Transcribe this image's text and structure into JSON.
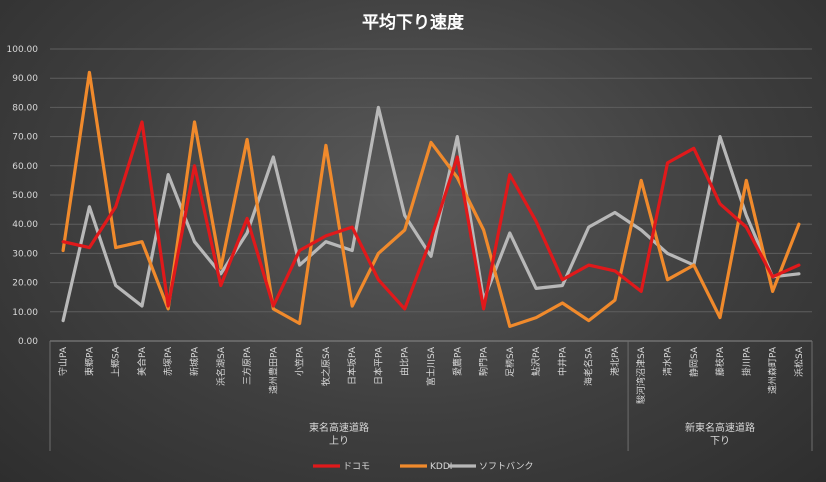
{
  "chart_data": {
    "type": "line",
    "title": "平均下り速度",
    "ylim": [
      0,
      100
    ],
    "yticks": [
      "0.00",
      "10.00",
      "20.00",
      "30.00",
      "40.00",
      "50.00",
      "60.00",
      "70.00",
      "80.00",
      "90.00",
      "100.00"
    ],
    "categories": [
      "守山PA",
      "東郷PA",
      "上郷SA",
      "美合PA",
      "赤塚PA",
      "新城PA",
      "浜名湖SA",
      "三方原PA",
      "遠州豊田PA",
      "小笠PA",
      "牧之原SA",
      "日本坂PA",
      "日本平PA",
      "由比PA",
      "富士川SA",
      "愛鷹PA",
      "駒門PA",
      "足柄SA",
      "鮎沢PA",
      "中井PA",
      "海老名SA",
      "港北PA",
      "駿河湾沼津SA",
      "清水PA",
      "静岡SA",
      "藤枝PA",
      "掛川PA",
      "遠州森町PA",
      "浜松SA"
    ],
    "groups": [
      {
        "label_line1": "東名高速道路",
        "label_line2": "上り",
        "count": 22
      },
      {
        "label_line1": "新東名高速道路",
        "label_line2": "下り",
        "count": 7
      }
    ],
    "series": [
      {
        "name": "ドコモ",
        "color": "#e0191b",
        "values": [
          34,
          32,
          46,
          75,
          12,
          60,
          19,
          42,
          12,
          31,
          36,
          39,
          21,
          11,
          35,
          63,
          11,
          57,
          41,
          21,
          26,
          24,
          17,
          61,
          66,
          47,
          39,
          22,
          26
        ]
      },
      {
        "name": "KDDI",
        "color": "#f08a2c",
        "values": [
          31,
          92,
          32,
          34,
          11,
          75,
          25,
          69,
          11,
          6,
          67,
          12,
          30,
          38,
          68,
          56,
          38,
          5,
          8,
          13,
          7,
          14,
          55,
          21,
          26,
          8,
          55,
          17,
          40
        ]
      },
      {
        "name": "ソフトバンク",
        "color": "#b8b8b8",
        "values": [
          7,
          46,
          19,
          12,
          57,
          34,
          23,
          37,
          63,
          26,
          34,
          31,
          80,
          43,
          29,
          70,
          14,
          37,
          18,
          19,
          39,
          44,
          38,
          30,
          26,
          70,
          43,
          22,
          23
        ]
      }
    ]
  }
}
